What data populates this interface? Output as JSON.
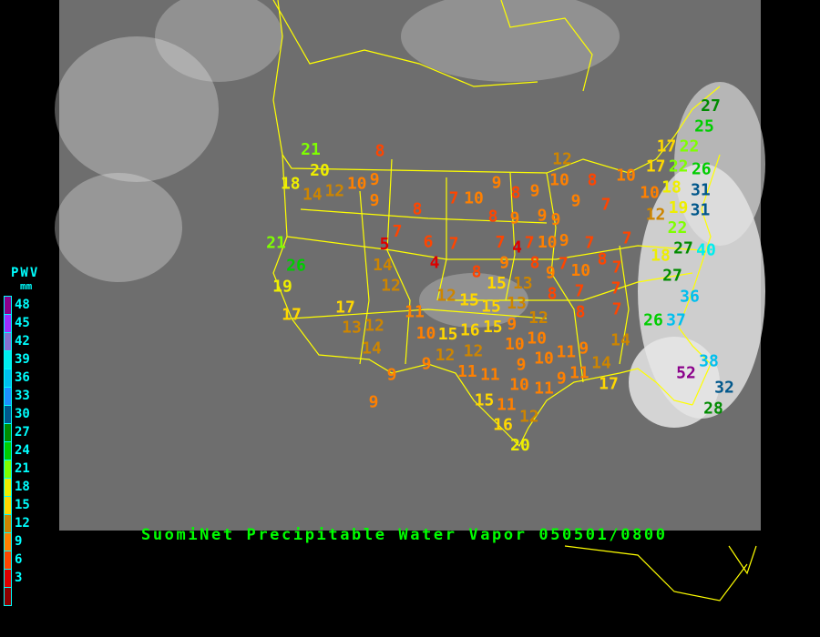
{
  "title": "SuomiNet Precipitable Water Vapor 050501/0800",
  "legend": {
    "title": "PWV",
    "unit": "mm",
    "labels": [
      "48",
      "45",
      "42",
      "39",
      "36",
      "33",
      "30",
      "27",
      "24",
      "21",
      "18",
      "15",
      "12",
      "9",
      "6",
      "3"
    ],
    "colors": [
      "#8b008b",
      "#9b30ff",
      "#8470d0",
      "#00eeee",
      "#00bfee",
      "#1e90ff",
      "#00578b",
      "#008b00",
      "#00cd00",
      "#7fff00",
      "#eeee00",
      "#ffd700",
      "#cd8500",
      "#ff8000",
      "#ff4500",
      "#dd0000",
      "#8b0000"
    ]
  },
  "map": {
    "background_color": "#6e6e6e",
    "border_color": "#ffff00",
    "station_values": [
      27,
      25,
      17,
      22,
      22,
      26,
      31,
      31,
      17,
      18,
      10,
      19,
      12,
      22,
      27,
      40,
      18,
      27,
      36,
      26,
      37,
      38,
      52,
      32,
      28,
      14,
      14,
      17,
      10,
      8,
      7,
      12,
      10,
      9,
      9,
      8,
      9,
      8,
      9,
      9,
      9,
      10,
      9,
      7,
      7,
      7,
      4,
      7,
      8,
      9,
      8,
      9,
      7,
      10,
      8,
      7,
      8,
      7,
      7,
      8,
      7,
      8,
      21,
      20,
      18,
      12,
      10,
      9,
      9,
      14,
      7,
      10,
      8,
      7,
      6,
      5,
      4,
      7,
      14,
      12,
      21,
      26,
      19,
      17,
      17,
      13,
      12,
      14,
      11,
      12,
      15,
      15,
      13,
      15,
      13,
      10,
      15,
      16,
      15,
      9,
      12,
      10,
      10,
      12,
      12,
      9,
      9,
      11,
      11,
      9,
      10,
      11,
      9,
      11,
      10,
      11,
      9,
      15,
      11,
      16,
      12,
      20,
      9
    ]
  }
}
